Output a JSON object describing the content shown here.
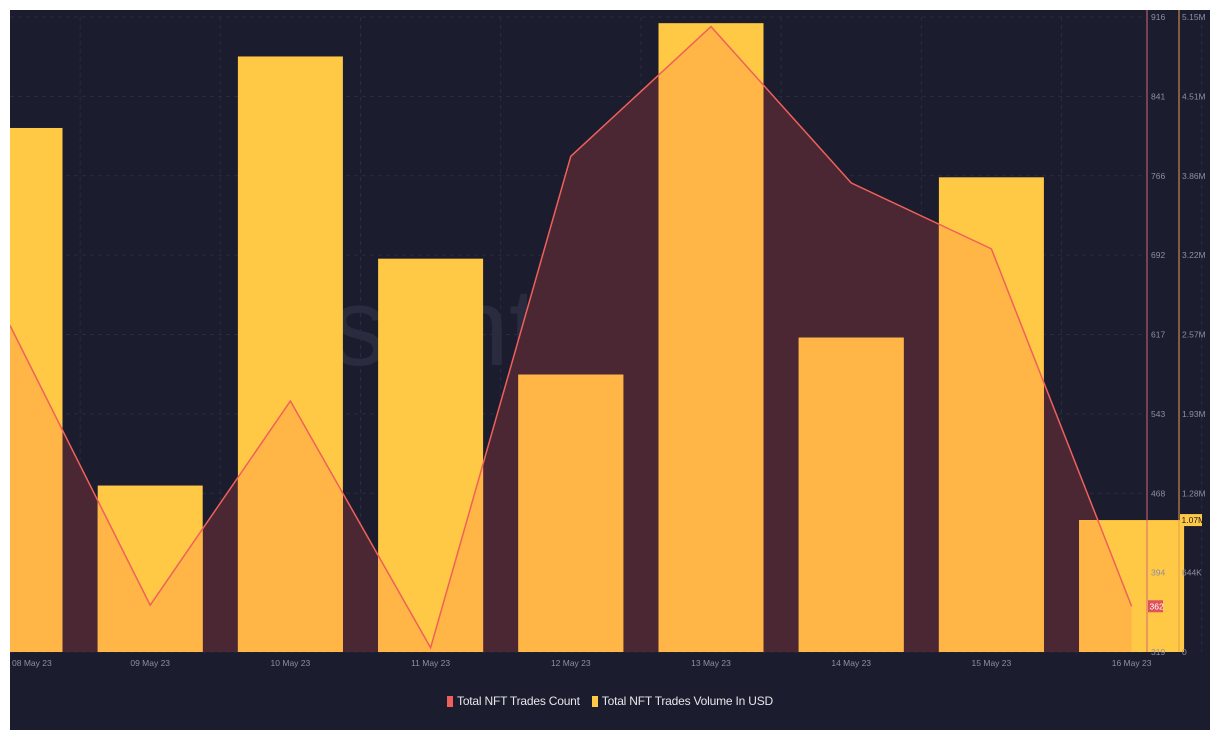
{
  "colors": {
    "background": "#1b1c2d",
    "bar": "#ffc845",
    "bar_overlap": "#ffb647",
    "line": "#f0605a",
    "area_fill": "#4a2733",
    "count_axis": "#d8667b",
    "volume_axis": "#e5a14d",
    "grid": "#2a2c40",
    "tick_text": "#8d8fa3"
  },
  "watermark": "santiment",
  "legend": [
    {
      "label": "Total NFT Trades Count",
      "color": "#f0605a"
    },
    {
      "label": "Total NFT Trades Volume In USD",
      "color": "#ffc845"
    }
  ],
  "chart_data": {
    "type": "bar+line",
    "title": "",
    "categories": [
      "08 May 23",
      "09 May 23",
      "10 May 23",
      "11 May 23",
      "12 May 23",
      "13 May 23",
      "14 May 23",
      "15 May 23",
      "16 May 23"
    ],
    "series": [
      {
        "name": "Total NFT Trades Volume In USD",
        "type": "bar",
        "axis": "right-outer",
        "values": [
          4250000,
          1350000,
          4830000,
          3190000,
          2250000,
          5100000,
          2550000,
          3850000,
          1070000
        ]
      },
      {
        "name": "Total NFT Trades Count",
        "type": "line",
        "axis": "right-inner",
        "values": [
          626,
          363,
          555,
          323,
          785,
          907,
          760,
          698,
          362
        ]
      }
    ],
    "count_axis": {
      "ticks": [
        "916",
        "841",
        "766",
        "692",
        "617",
        "543",
        "468",
        "394",
        "319"
      ],
      "range": [
        319,
        916
      ],
      "current_value_badge": "362"
    },
    "volume_axis": {
      "ticks": [
        "5.15M",
        "4.51M",
        "3.86M",
        "3.22M",
        "2.57M",
        "1.93M",
        "1.28M",
        "644K",
        "0"
      ],
      "range": [
        0,
        5150000
      ],
      "current_value_badge": "1.07M"
    },
    "grid": true,
    "legend_position": "bottom"
  }
}
